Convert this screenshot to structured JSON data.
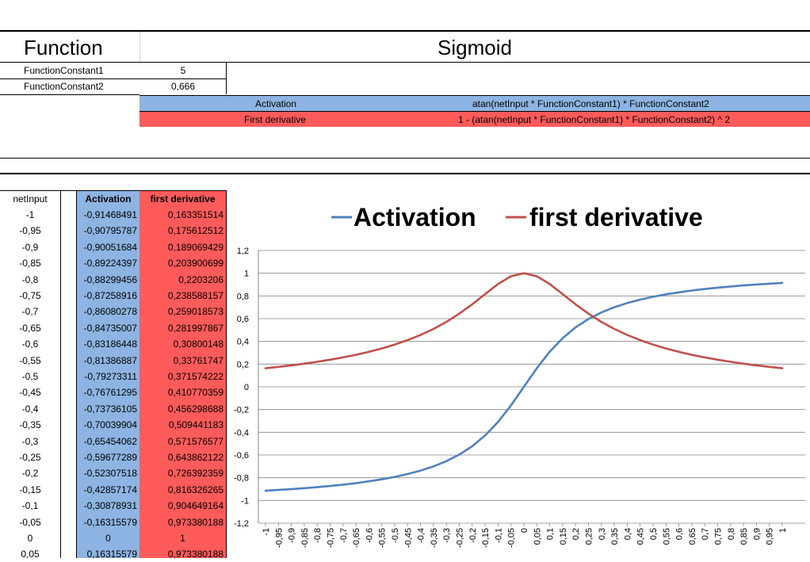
{
  "header": {
    "function_label": "Function",
    "function_name": "Sigmoid"
  },
  "constants": [
    {
      "name": "FunctionConstant1",
      "value": "5"
    },
    {
      "name": "FunctionConstant2",
      "value": "0,666"
    }
  ],
  "formulas": [
    {
      "label": "Activation",
      "expression": "atan(netInput * FunctionConstant1) * FunctionConstant2",
      "color": "#8db4e2"
    },
    {
      "label": "First derivative",
      "expression": "1 - (atan(netInput * FunctionConstant1) * FunctionConstant2) ^ 2",
      "color": "#ff5b5b"
    }
  ],
  "table": {
    "headers": [
      "netInput",
      "Activation",
      "first derivative"
    ],
    "rows": [
      [
        "-1",
        "-0,91468491",
        "0,163351514"
      ],
      [
        "-0,95",
        "-0,90795787",
        "0,175612512"
      ],
      [
        "-0,9",
        "-0,90051684",
        "0,189069429"
      ],
      [
        "-0,85",
        "-0,89224397",
        "0,203900699"
      ],
      [
        "-0,8",
        "-0,88299456",
        "0,2203206"
      ],
      [
        "-0,75",
        "-0,87258916",
        "0,238588157"
      ],
      [
        "-0,7",
        "-0,86080278",
        "0,259018573"
      ],
      [
        "-0,65",
        "-0,84735007",
        "0,281997867"
      ],
      [
        "-0,6",
        "-0,83186448",
        "0,30800148"
      ],
      [
        "-0,55",
        "-0,81386887",
        "0,33761747"
      ],
      [
        "-0,5",
        "-0,79273311",
        "0,371574222"
      ],
      [
        "-0,45",
        "-0,76761295",
        "0,410770359"
      ],
      [
        "-0,4",
        "-0,73736105",
        "0,456298688"
      ],
      [
        "-0,35",
        "-0,70039904",
        "0,509441183"
      ],
      [
        "-0,3",
        "-0,65454062",
        "0,571576577"
      ],
      [
        "-0,25",
        "-0,59677289",
        "0,643862122"
      ],
      [
        "-0,2",
        "-0,52307518",
        "0,726392359"
      ],
      [
        "-0,15",
        "-0,42857174",
        "0,816326265"
      ],
      [
        "-0,1",
        "-0,30878931",
        "0,904649164"
      ],
      [
        "-0,05",
        "-0,16315579",
        "0,973380188"
      ],
      [
        "0",
        "0",
        "1"
      ],
      [
        "0,05",
        "0,16315579",
        "0,973380188"
      ]
    ]
  },
  "chart_data": {
    "type": "line",
    "x": [
      -1,
      -0.95,
      -0.9,
      -0.85,
      -0.8,
      -0.75,
      -0.7,
      -0.65,
      -0.6,
      -0.55,
      -0.5,
      -0.45,
      -0.4,
      -0.35,
      -0.3,
      -0.25,
      -0.2,
      -0.15,
      -0.1,
      -0.05,
      0,
      0.05,
      0.1,
      0.15,
      0.2,
      0.25,
      0.3,
      0.35,
      0.4,
      0.45,
      0.5,
      0.55,
      0.6,
      0.65,
      0.7,
      0.75,
      0.8,
      0.85,
      0.9,
      0.95,
      1
    ],
    "x_tick_labels": [
      "-1",
      "-0,95",
      "-0,9",
      "-0,85",
      "-0,8",
      "-0,75",
      "-0,7",
      "-0,65",
      "-0,6",
      "-0,55",
      "-0,5",
      "-0,45",
      "-0,4",
      "-0,35",
      "-0,3",
      "-0,25",
      "-0,2",
      "-0,15",
      "-0,1",
      "-0,05",
      "0",
      "0,05",
      "0,1",
      "0,15",
      "0,2",
      "0,25",
      "0,3",
      "0,35",
      "0,4",
      "0,45",
      "0,5",
      "0,55",
      "0,6",
      "0,65",
      "0,7",
      "0,75",
      "0,8",
      "0,85",
      "0,9",
      "0,95",
      "1"
    ],
    "series": [
      {
        "name": "Activation",
        "color": "#4f81bd",
        "values": [
          -0.91468491,
          -0.90795787,
          -0.90051684,
          -0.89224397,
          -0.88299456,
          -0.87258916,
          -0.86080278,
          -0.84735007,
          -0.83186448,
          -0.81386887,
          -0.79273311,
          -0.76761295,
          -0.73736105,
          -0.70039904,
          -0.65454062,
          -0.59677289,
          -0.52307518,
          -0.42857174,
          -0.30878931,
          -0.16315579,
          0,
          0.16315579,
          0.30878931,
          0.42857174,
          0.52307518,
          0.59677289,
          0.65454062,
          0.70039904,
          0.73736105,
          0.76761295,
          0.79273311,
          0.81386887,
          0.83186448,
          0.84735007,
          0.86080278,
          0.87258916,
          0.88299456,
          0.89224397,
          0.90051684,
          0.90795787,
          0.91468491
        ]
      },
      {
        "name": "first derivative",
        "color": "#c0504d",
        "values": [
          0.163351514,
          0.175612512,
          0.189069429,
          0.203900699,
          0.2203206,
          0.238588157,
          0.259018573,
          0.281997867,
          0.30800148,
          0.33761747,
          0.371574222,
          0.410770359,
          0.456298688,
          0.509441183,
          0.571576577,
          0.643862122,
          0.726392359,
          0.816326265,
          0.904649164,
          0.973380188,
          1,
          0.973380188,
          0.904649164,
          0.816326265,
          0.726392359,
          0.643862122,
          0.571576577,
          0.509441183,
          0.456298688,
          0.410770359,
          0.371574222,
          0.33761747,
          0.30800148,
          0.281997867,
          0.259018573,
          0.238588157,
          0.2203206,
          0.203900699,
          0.189069429,
          0.175612512,
          0.163351514
        ]
      }
    ],
    "y_ticks": [
      1.2,
      1,
      0.8,
      0.6,
      0.4,
      0.2,
      0,
      -0.2,
      -0.4,
      -0.6,
      -0.8,
      -1,
      -1.2
    ],
    "y_tick_labels": [
      "1,2",
      "1",
      "0,8",
      "0,6",
      "0,4",
      "0,2",
      "0",
      "-0,2",
      "-0,4",
      "-0,6",
      "-0,8",
      "-1",
      "-1,2"
    ],
    "ylim": [
      -1.2,
      1.2
    ],
    "grid": true,
    "legend": "top"
  }
}
